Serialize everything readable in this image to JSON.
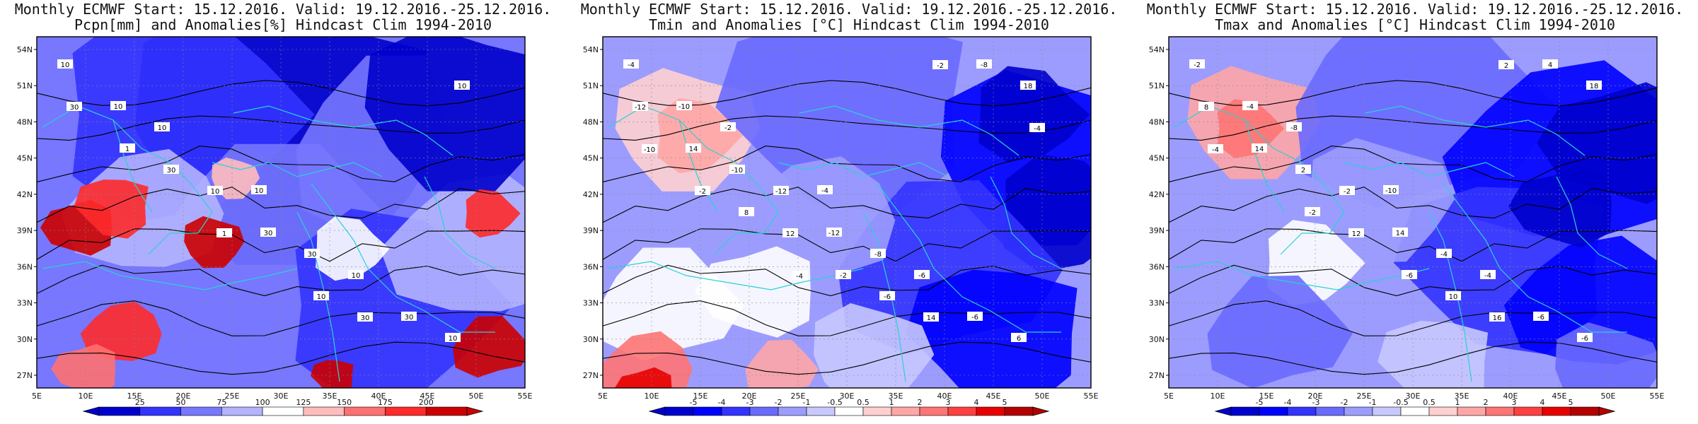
{
  "panels": [
    {
      "title_line1": "Monthly ECMWF Start: 15.12.2016. Valid: 19.12.2016.-25.12.2016.",
      "title_line2": "Pcpn[mm] and Anomalies[%] Hindcast Clim 1994-2010",
      "colorbar_labels": [
        "25",
        "50",
        "75",
        "100",
        "125",
        "150",
        "175",
        "200"
      ],
      "colors": [
        "#0000cc",
        "#3333ff",
        "#7777ff",
        "#b4b4ff",
        "#ffffff",
        "#ffbcbc",
        "#ff7070",
        "#ff2a2a",
        "#cc0000"
      ],
      "contour_labels": [
        "10",
        "10",
        "10",
        "10",
        "10",
        "10",
        "10",
        "30",
        "30",
        "30",
        "30",
        "30",
        "30",
        "10",
        "1",
        "1",
        "10"
      ]
    },
    {
      "title_line1": "Monthly ECMWF Start: 15.12.2016. Valid: 19.12.2016.-25.12.2016.",
      "title_line2": "Tmin and Anomalies [°C] Hindcast Clim 1994-2010",
      "colorbar_labels": [
        "-5",
        "-4",
        "-3",
        "-2",
        "-1",
        "-0.5",
        "0.5",
        "1",
        "2",
        "3",
        "4",
        "5"
      ],
      "colors": [
        "#0000cc",
        "#0000ff",
        "#3333ff",
        "#6a6aff",
        "#9c9cff",
        "#c8c8ff",
        "#ffffff",
        "#ffd0d0",
        "#ffa6a6",
        "#ff7474",
        "#ff4040",
        "#e80000",
        "#b40000"
      ],
      "contour_labels": [
        "-4",
        "-2",
        "-4",
        "-6",
        "6",
        "-10",
        "-12",
        "-8",
        "-6",
        "-12",
        "-10",
        "-12",
        "14",
        "18",
        "14",
        "12",
        "-6",
        "-8",
        "-10",
        "8",
        "-2",
        "-2",
        "-4",
        "-2",
        "-4"
      ]
    },
    {
      "title_line1": "Monthly ECMWF Start: 15.12.2016. Valid: 19.12.2016.-25.12.2016.",
      "title_line2": "Tmax and Anomalies [°C] Hindcast Clim 1994-2010",
      "colorbar_labels": [
        "-5",
        "-4",
        "-3",
        "-2",
        "-1",
        "-0.5",
        "0.5",
        "1",
        "2",
        "3",
        "4",
        "5"
      ],
      "colors": [
        "#0000cc",
        "#0000ff",
        "#3333ff",
        "#6a6aff",
        "#9c9cff",
        "#c8c8ff",
        "#ffffff",
        "#ffd0d0",
        "#ffa6a6",
        "#ff7474",
        "#ff4040",
        "#e80000",
        "#b40000"
      ],
      "contour_labels": [
        "-2",
        "-8",
        "-10",
        "-4",
        "-6",
        "-4",
        "-2",
        "-4",
        "-6",
        "8",
        "2",
        "14",
        "16",
        "18",
        "14",
        "12",
        "10",
        "4",
        "-4",
        "-2",
        "-6",
        "2"
      ]
    }
  ],
  "lat_labels": [
    "54N",
    "51N",
    "48N",
    "45N",
    "42N",
    "39N",
    "36N",
    "33N",
    "30N",
    "27N"
  ],
  "lon_labels": [
    "5E",
    "10E",
    "15E",
    "20E",
    "25E",
    "30E",
    "35E",
    "40E",
    "45E",
    "50E",
    "55E"
  ]
}
